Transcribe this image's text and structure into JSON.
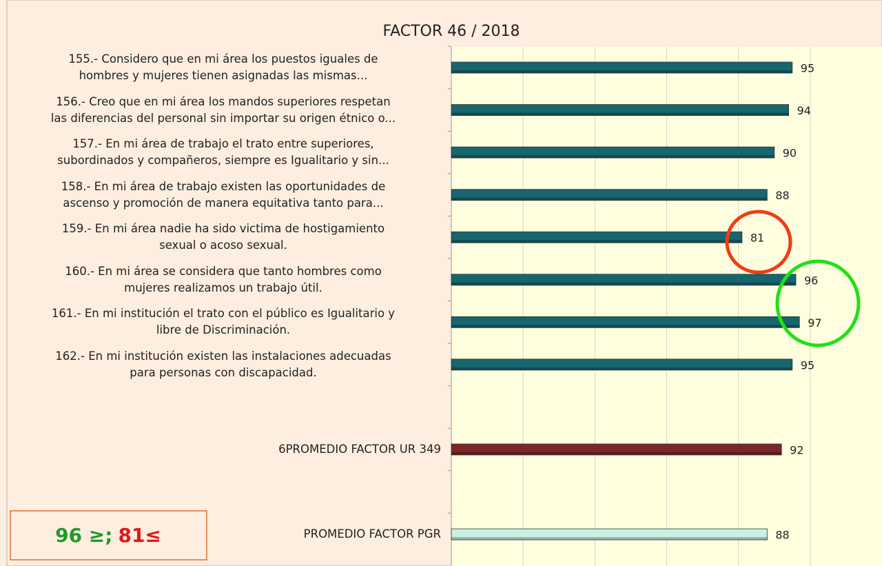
{
  "chart_data": {
    "type": "barh",
    "title": "FACTOR 46 / 2018",
    "categories": [
      "155.- Considero que en mi área los puestos iguales de\nhombres y mujeres tienen asignadas las mismas...",
      "156.- Creo que en mi área los mandos superiores respetan\nlas diferencias del personal sin importar su origen étnico o...",
      "157.- En mi área de trabajo el trato entre superiores,\nsubordinados y compañeros, siempre es Igualitario y sin...",
      "158.- En mi área de trabajo existen las oportunidades de\nascenso y promoción de manera equitativa tanto para...",
      "159.- En mi área nadie ha sido victima de hostigamiento\nsexual o acoso sexual.",
      "160.- En mi área se considera que tanto hombres como\nmujeres realizamos un trabajo útil.",
      "161.- En mi institución el trato con el público es Igualitario y\nlibre de Discriminación.",
      "162.- En mi institución existen las instalaciones adecuadas\npara personas con discapacidad.",
      null,
      "6PROMEDIO FACTOR UR 349",
      null,
      "PROMEDIO FACTOR PGR"
    ],
    "values": [
      95,
      94,
      90,
      88,
      81,
      96,
      97,
      95,
      null,
      92,
      null,
      88
    ],
    "colors": [
      "#17656d",
      "#17656d",
      "#17656d",
      "#17656d",
      "#17656d",
      "#17656d",
      "#17656d",
      "#17656d",
      null,
      "#7a2626",
      null,
      "#c9f0e0"
    ],
    "xlim": [
      0,
      120
    ],
    "xticks": [
      20,
      40,
      60,
      80,
      100
    ],
    "grid": true,
    "annotations": {
      "high": "96 ≥;",
      "low": "81≤"
    }
  }
}
